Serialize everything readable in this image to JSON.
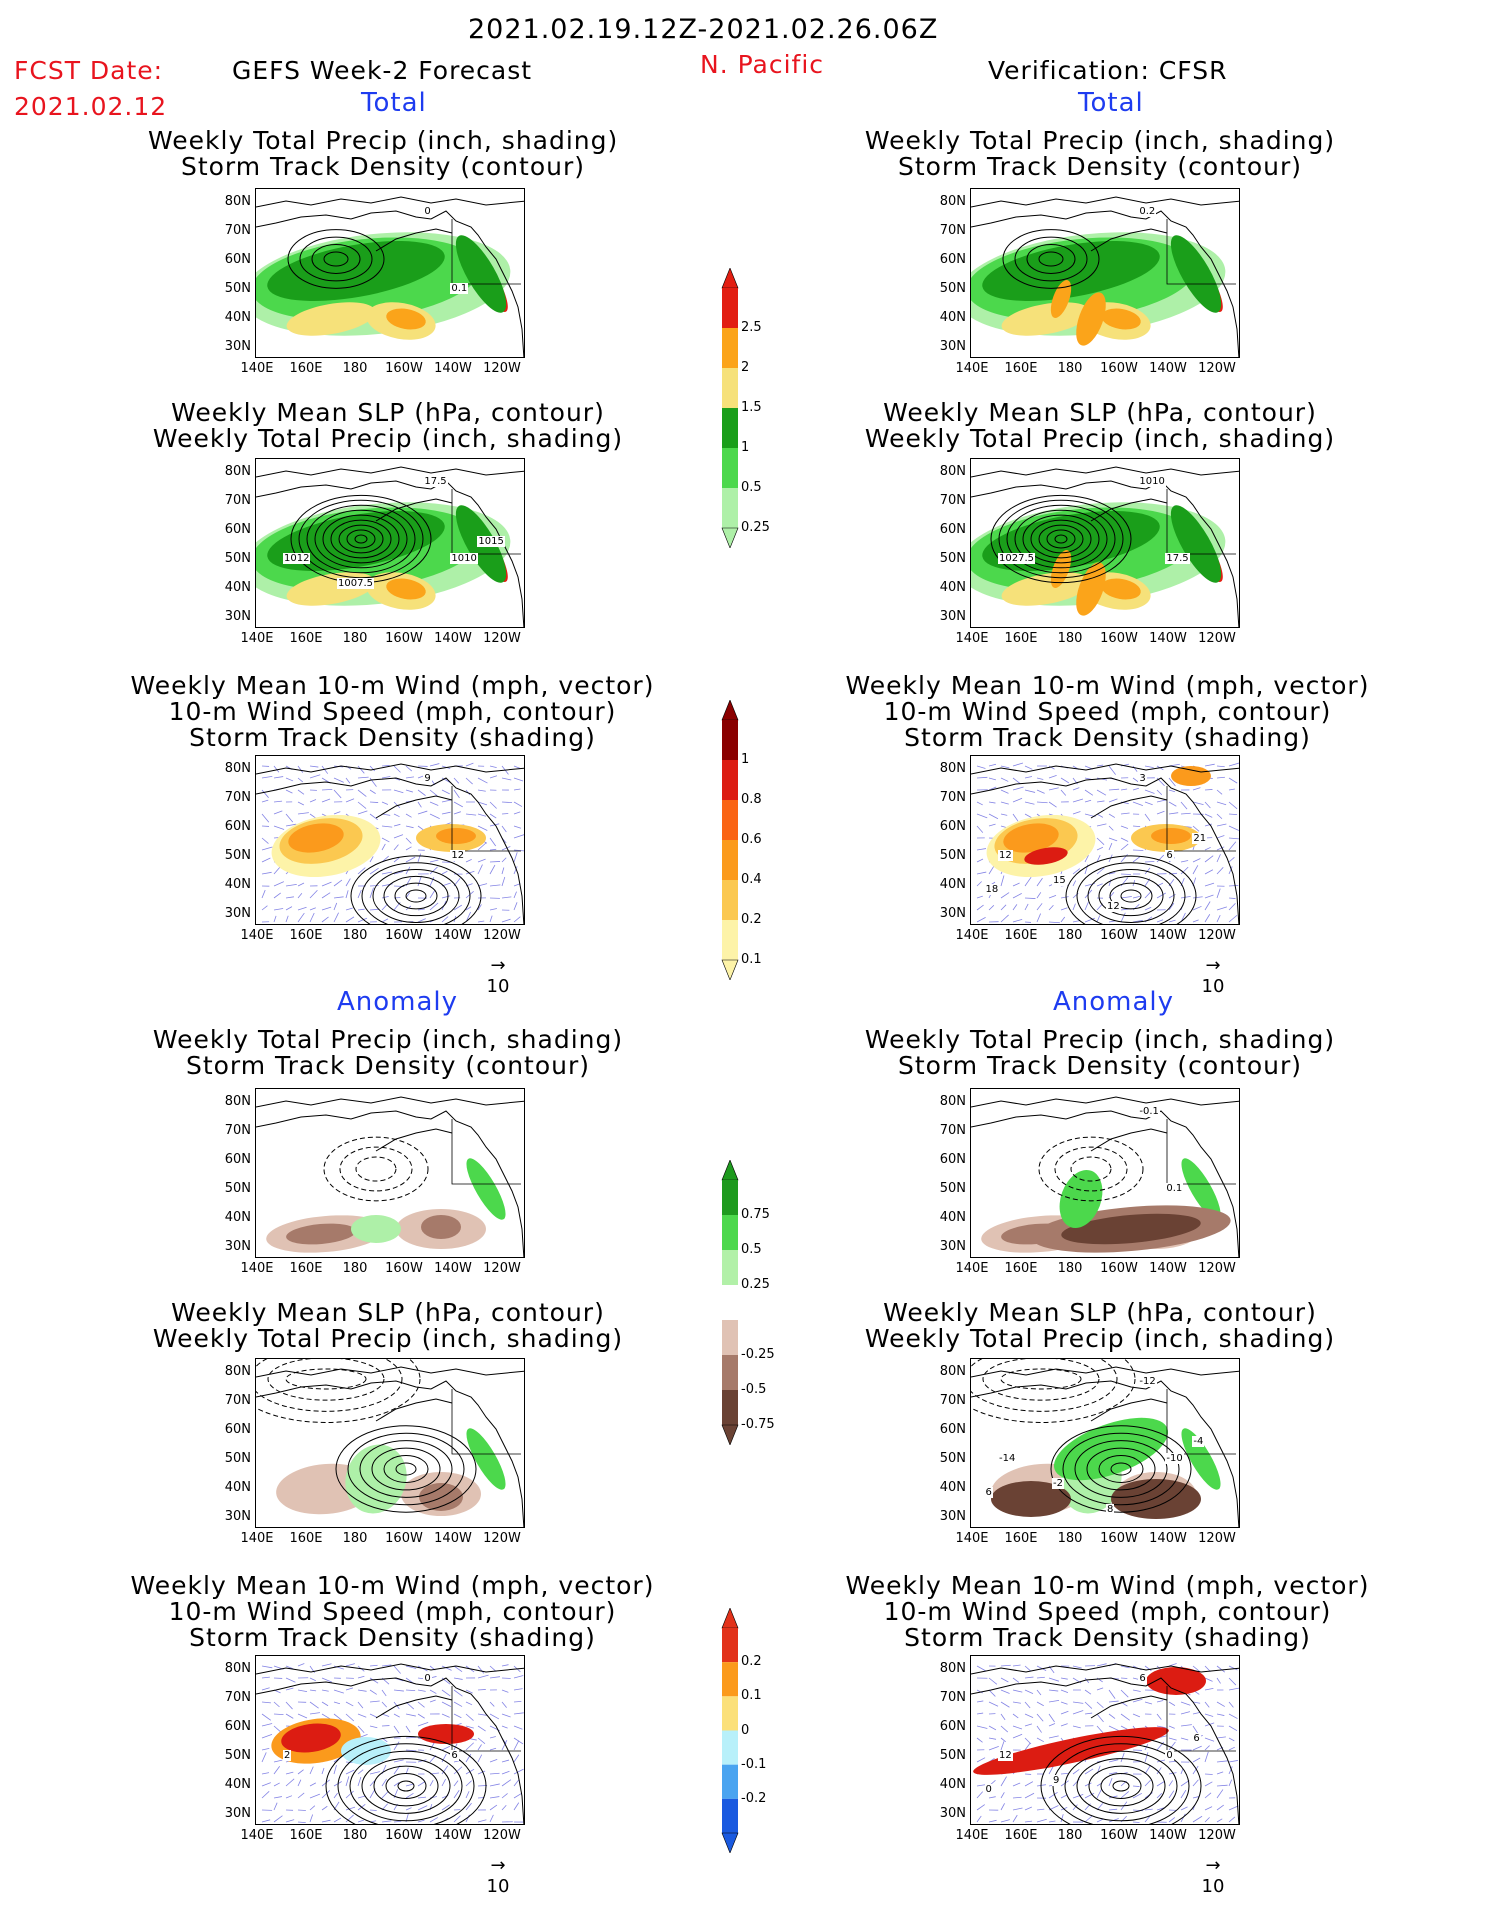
{
  "header": {
    "period": "2021.02.19.12Z-2021.02.26.06Z",
    "fcst_label": "FCST Date:",
    "fcst_date": "2021.02.12",
    "forecast_title": "GEFS Week-2 Forecast",
    "region": "N. Pacific",
    "verification": "Verification: CFSR"
  },
  "sections": {
    "total": "Total",
    "anomaly": "Anomaly"
  },
  "titles": {
    "precip_track": [
      "Weekly Total Precip (inch, shading)",
      "Storm Track Density (contour)"
    ],
    "slp_precip": [
      "Weekly Mean SLP (hPa, contour)",
      "Weekly Total Precip (inch, shading)"
    ],
    "wind_track": [
      "Weekly Mean 10-m Wind (mph, vector)",
      "10-m Wind Speed (mph, contour)",
      "Storm Track Density (shading)"
    ]
  },
  "axes": {
    "lat": [
      "80N",
      "70N",
      "60N",
      "50N",
      "40N",
      "30N"
    ],
    "lon": [
      "140E",
      "160E",
      "180",
      "160W",
      "140W",
      "120W"
    ]
  },
  "vector_ref": "10",
  "map_labels": {
    "p1L": [
      "0",
      "0.1"
    ],
    "p1R": [
      "0.2"
    ],
    "p2L": [
      "17.5",
      "1010",
      "1012",
      "1007.5",
      "1015"
    ],
    "p2R": [
      "1010",
      "17.5",
      "1027.5"
    ],
    "p3L": [
      "9",
      "12"
    ],
    "p3R": [
      "3",
      "6",
      "12",
      "15",
      "21",
      "18",
      "12"
    ],
    "p4R": [
      "-0.1",
      "0.1"
    ],
    "p5R": [
      "-12",
      "-10",
      "-14",
      "-2",
      "-4",
      "6",
      "8"
    ],
    "p6L": [
      "0",
      "6",
      "2"
    ],
    "p6R": [
      "6",
      "0",
      "12",
      "9",
      "6",
      "0"
    ]
  },
  "colorbars": {
    "precip_total": {
      "labels": [
        "2.5",
        "2",
        "1.5",
        "1",
        "0.5",
        "0.25"
      ],
      "colors": [
        "#e21e12",
        "#fba41a",
        "#f6e17a",
        "#1a9e1a",
        "#4cd84c",
        "#aef0a8"
      ]
    },
    "track_total": {
      "labels": [
        "1",
        "0.8",
        "0.6",
        "0.4",
        "0.2",
        "0.1"
      ],
      "colors": [
        "#8a0000",
        "#dc1c12",
        "#fa6414",
        "#fb9a1c",
        "#fbc850",
        "#fdf3a8"
      ]
    },
    "precip_anom": {
      "labels": [
        "0.75",
        "0.5",
        "0.25",
        "-0.25",
        "-0.5",
        "-0.75"
      ],
      "colors": [
        "#1e9a1e",
        "#4cd84c",
        "#b2f0a8",
        "#ffffff",
        "#e0c2b4",
        "#a67a6a",
        "#6a4234"
      ]
    },
    "track_anom": {
      "labels": [
        "0.2",
        "0.1",
        "0",
        "-0.1",
        "-0.2"
      ],
      "colors": [
        "#e2321a",
        "#fb9a1c",
        "#fbe07a",
        "#b8f0fa",
        "#4aa4f0",
        "#1a5ae0"
      ]
    }
  }
}
